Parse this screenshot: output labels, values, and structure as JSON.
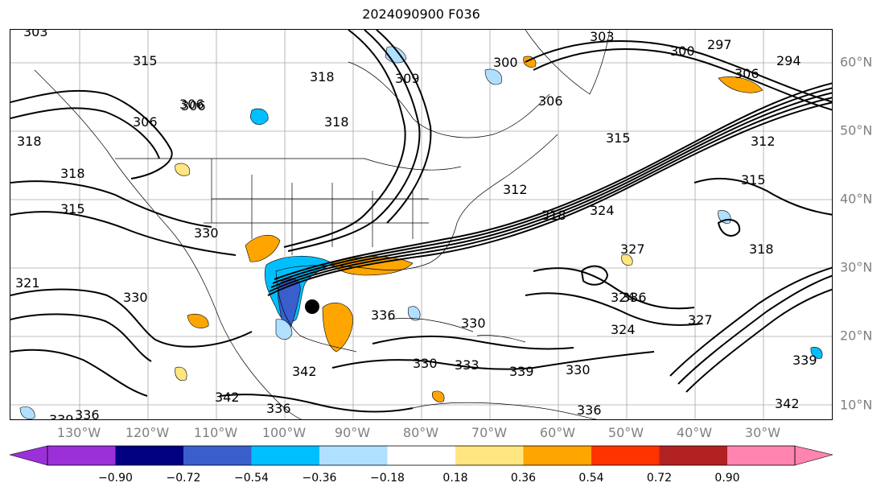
{
  "title": "2024090900 F036",
  "lat_labels": [
    "60°N",
    "50°N",
    "40°N",
    "30°N",
    "20°N",
    "10°N"
  ],
  "lon_labels": [
    "130°W",
    "120°W",
    "110°W",
    "100°W",
    "90°W",
    "80°W",
    "70°W",
    "60°W",
    "50°W",
    "40°W",
    "30°W"
  ],
  "contour_labels": [
    "303",
    "318",
    "306",
    "306",
    "318",
    "318",
    "315",
    "330",
    "321",
    "330",
    "318",
    "315",
    "309",
    "306",
    "300",
    "306",
    "303",
    "300",
    "297",
    "294",
    "306",
    "312",
    "315",
    "318",
    "315",
    "312",
    "324",
    "327",
    "336",
    "336",
    "330",
    "324",
    "324",
    "327",
    "318",
    "339",
    "342",
    "342",
    "336",
    "339",
    "336",
    "330",
    "333",
    "339",
    "330",
    "336",
    "342"
  ],
  "colorbar": {
    "ticks": [
      "−0.90",
      "−0.72",
      "−0.54",
      "−0.36",
      "−0.18",
      "0.18",
      "0.36",
      "0.54",
      "0.72",
      "0.90"
    ],
    "colors": [
      "#9b30d9",
      "#000080",
      "#3a5fcd",
      "#00bfff",
      "#b0e0ff",
      "#ffffff",
      "#ffe680",
      "#ffa500",
      "#ff3300",
      "#b22222",
      "#ff85b0"
    ]
  },
  "colors": {
    "contour": "#000000",
    "grid": "#808080",
    "neg_light": "#b0e0ff",
    "neg_mid": "#00bfff",
    "neg_dark": "#3a5fcd",
    "pos_light": "#ffe680",
    "pos_mid": "#ffa500"
  },
  "markers": {
    "center_dot": "storm-center"
  }
}
